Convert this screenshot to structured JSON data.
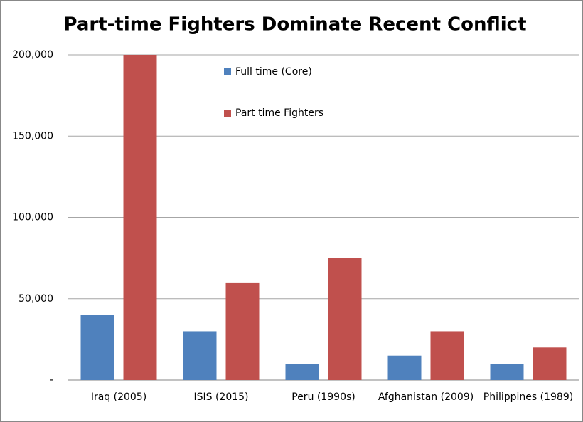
{
  "chart_data": {
    "type": "bar",
    "title": "Part-time Fighters Dominate Recent Conflict",
    "categories": [
      "Iraq (2005)",
      "ISIS (2015)",
      "Peru (1990s)",
      "Afghanistan (2009)",
      "Philippines (1989)"
    ],
    "series": [
      {
        "name": "Full time (Core)",
        "color": "#4f81bd",
        "values": [
          40000,
          30000,
          10000,
          15000,
          10000
        ]
      },
      {
        "name": "Part time Fighters",
        "color": "#c0504d",
        "values": [
          200000,
          60000,
          75000,
          30000,
          20000
        ]
      }
    ],
    "ylim": [
      0,
      200000
    ],
    "yticks": [
      {
        "value": 0,
        "label": "-"
      },
      {
        "value": 50000,
        "label": "50,000"
      },
      {
        "value": 100000,
        "label": "100,000"
      },
      {
        "value": 150000,
        "label": "150,000"
      },
      {
        "value": 200000,
        "label": "200,000"
      }
    ],
    "grid": true
  }
}
